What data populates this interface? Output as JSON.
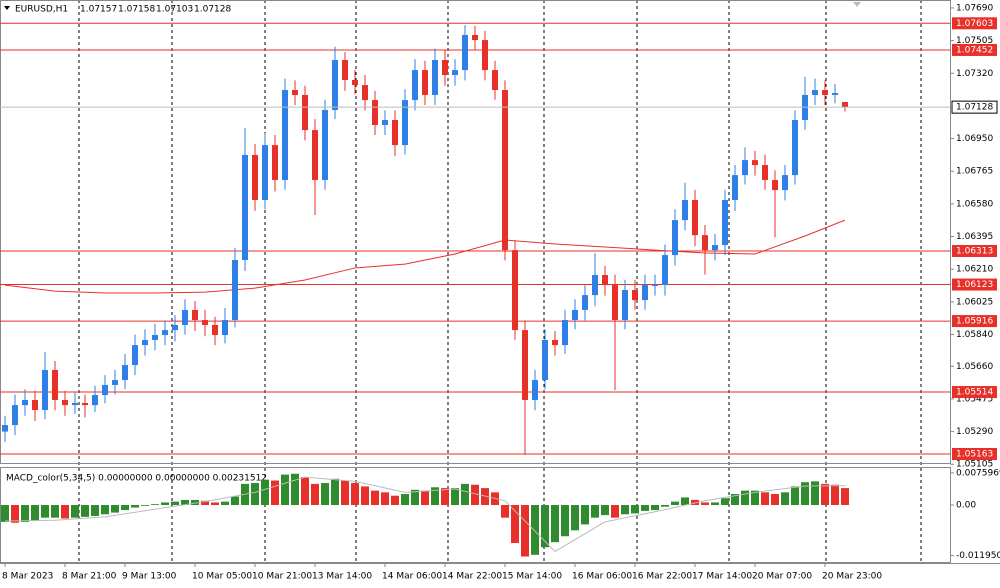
{
  "chart_data": {
    "type": "candlestick",
    "symbol": "EURUSD,H1",
    "candle_up_color": "#2f7fe6",
    "candle_down_color": "#e8302a",
    "ylim": [
      1.05112,
      1.07735
    ],
    "yticks": [
      {
        "value": 1.0769,
        "label": "1.07690"
      },
      1.07505,
      {
        "value": 1.0732,
        "label": "1.07320"
      },
      {
        "value": 1.0695,
        "label": "1.06950"
      },
      1.06765,
      {
        "value": 1.0658,
        "label": "1.06580"
      },
      1.06395,
      {
        "value": 1.0621,
        "label": "1.06210"
      },
      1.06025,
      {
        "value": 1.0584,
        "label": "1.05840"
      },
      {
        "value": 1.0566,
        "label": "1.05660"
      },
      1.05475,
      {
        "value": 1.0529,
        "label": "1.05290"
      },
      1.05105
    ],
    "levels": {
      "color": "#e8302a",
      "values": [
        1.07603,
        1.07452,
        1.06313,
        1.06123,
        1.05916,
        1.05514,
        1.05163
      ]
    },
    "categories": [
      "8 Mar 2023",
      null,
      null,
      null,
      null,
      null,
      "8 Mar 21:00",
      null,
      null,
      null,
      null,
      null,
      "9 Mar 13:00",
      null,
      null,
      null,
      null,
      null,
      null,
      "10 Mar 05:00",
      null,
      null,
      null,
      null,
      null,
      "10 Mar 21:00",
      null,
      null,
      null,
      null,
      null,
      "13 Mar 14:00",
      null,
      null,
      null,
      null,
      null,
      null,
      "14 Mar 06:00",
      null,
      null,
      null,
      null,
      null,
      "14 Mar 22:00",
      null,
      null,
      null,
      null,
      null,
      "15 Mar 14:00",
      null,
      null,
      null,
      null,
      null,
      null,
      "16 Mar 06:00",
      null,
      null,
      null,
      null,
      null,
      "16 Mar 22:00",
      null,
      null,
      null,
      null,
      null,
      "17 Mar 14:00",
      null,
      null,
      null,
      null,
      null,
      "20 Mar 07:00",
      null,
      null,
      null,
      null,
      null,
      null,
      "20 Mar 23:00",
      null,
      null
    ],
    "candles": [
      [
        1.0529,
        1.0538,
        1.0523,
        1.05327
      ],
      [
        1.05327,
        1.055,
        1.0527,
        1.0544
      ],
      [
        1.0544,
        1.0553,
        1.0538,
        1.05469
      ],
      [
        1.05469,
        1.0552,
        1.0535,
        1.05412
      ],
      [
        1.05412,
        1.05741,
        1.0536,
        1.05639
      ],
      [
        1.05639,
        1.0569,
        1.0541,
        1.05469
      ],
      [
        1.05469,
        1.0552,
        1.0538,
        1.0544
      ],
      [
        1.0544,
        1.0551,
        1.0539,
        1.05452
      ],
      [
        1.05452,
        1.055,
        1.0537,
        1.0544
      ],
      [
        1.0544,
        1.0555,
        1.054,
        1.05497
      ],
      [
        1.05497,
        1.0561,
        1.0545,
        1.05554
      ],
      [
        1.05554,
        1.0564,
        1.055,
        1.05582
      ],
      [
        1.05582,
        1.0573,
        1.0553,
        1.05667
      ],
      [
        1.05667,
        1.0584,
        1.0561,
        1.0578
      ],
      [
        1.0578,
        1.0587,
        1.0572,
        1.05809
      ],
      [
        1.05809,
        1.059,
        1.0575,
        1.05837
      ],
      [
        1.05837,
        1.0592,
        1.0578,
        1.05865
      ],
      [
        1.05865,
        1.0595,
        1.058,
        1.05894
      ],
      [
        1.05894,
        1.0604,
        1.0584,
        1.05979
      ],
      [
        1.05979,
        1.0603,
        1.0586,
        1.05922
      ],
      [
        1.05922,
        1.0598,
        1.0583,
        1.05894
      ],
      [
        1.05894,
        1.0594,
        1.0578,
        1.05837
      ],
      [
        1.05837,
        1.0599,
        1.0579,
        1.05922
      ],
      [
        1.05922,
        1.0633,
        1.0588,
        1.06262
      ],
      [
        1.06262,
        1.0701,
        1.062,
        1.06857
      ],
      [
        1.06857,
        1.0692,
        1.0654,
        1.06602
      ],
      [
        1.06602,
        1.0698,
        1.0655,
        1.06913
      ],
      [
        1.06913,
        1.0697,
        1.0665,
        1.06715
      ],
      [
        1.06715,
        1.0729,
        1.0666,
        1.07225
      ],
      [
        1.07225,
        1.0728,
        1.0714,
        1.07197
      ],
      [
        1.07197,
        1.0725,
        1.0694,
        1.06998
      ],
      [
        1.06998,
        1.0706,
        1.06517,
        1.06715
      ],
      [
        1.06715,
        1.0717,
        1.0666,
        1.07112
      ],
      [
        1.07112,
        1.0747,
        1.0706,
        1.07395
      ],
      [
        1.07395,
        1.0744,
        1.0722,
        1.07282
      ],
      [
        1.07282,
        1.0734,
        1.072,
        1.07253
      ],
      [
        1.07253,
        1.0731,
        1.0711,
        1.07168
      ],
      [
        1.07168,
        1.0722,
        1.0697,
        1.07027
      ],
      [
        1.07027,
        1.0711,
        1.0697,
        1.07055
      ],
      [
        1.07055,
        1.0711,
        1.0685,
        1.06913
      ],
      [
        1.06913,
        1.0723,
        1.0686,
        1.07168
      ],
      [
        1.07168,
        1.074,
        1.0711,
        1.07338
      ],
      [
        1.07338,
        1.0739,
        1.0714,
        1.07197
      ],
      [
        1.07197,
        1.0746,
        1.0714,
        1.07395
      ],
      [
        1.07395,
        1.0745,
        1.0725,
        1.0731
      ],
      [
        1.0731,
        1.074,
        1.0725,
        1.07338
      ],
      [
        1.07338,
        1.07593,
        1.0728,
        1.07537
      ],
      [
        1.07537,
        1.0759,
        1.0745,
        1.07508
      ],
      [
        1.07508,
        1.0756,
        1.0728,
        1.07338
      ],
      [
        1.07338,
        1.0739,
        1.0717,
        1.07225
      ],
      [
        1.07225,
        1.0728,
        1.0626,
        1.06318
      ],
      [
        1.06318,
        1.0637,
        1.0581,
        1.05865
      ],
      [
        1.05865,
        1.0592,
        1.05157,
        1.05469
      ],
      [
        1.05469,
        1.0564,
        1.0541,
        1.05582
      ],
      [
        1.05582,
        1.0587,
        1.0553,
        1.05809
      ],
      [
        1.05809,
        1.0586,
        1.0572,
        1.0578
      ],
      [
        1.0578,
        1.0598,
        1.0573,
        1.05922
      ],
      [
        1.05922,
        1.0604,
        1.0587,
        1.05979
      ],
      [
        1.05979,
        1.0612,
        1.0592,
        1.06063
      ],
      [
        1.06063,
        1.063,
        1.06,
        1.06177
      ],
      [
        1.06177,
        1.0623,
        1.0606,
        1.0612
      ],
      [
        1.0612,
        1.0618,
        1.05525,
        1.05922
      ],
      [
        1.05922,
        1.0615,
        1.0587,
        1.06092
      ],
      [
        1.06092,
        1.0615,
        1.0598,
        1.06035
      ],
      [
        1.06035,
        1.0618,
        1.0598,
        1.0612
      ],
      [
        1.0612,
        1.0618,
        1.0606,
        1.0612
      ],
      [
        1.0612,
        1.0635,
        1.0606,
        1.0629
      ],
      [
        1.0629,
        1.0655,
        1.0623,
        1.06488
      ],
      [
        1.06488,
        1.067,
        1.0643,
        1.06602
      ],
      [
        1.06602,
        1.0666,
        1.0634,
        1.06403
      ],
      [
        1.06403,
        1.0646,
        1.0618,
        1.06318
      ],
      [
        1.06318,
        1.0641,
        1.0626,
        1.06347
      ],
      [
        1.06347,
        1.0666,
        1.0629,
        1.06602
      ],
      [
        1.06602,
        1.068,
        1.0654,
        1.06743
      ],
      [
        1.06743,
        1.069,
        1.0669,
        1.06828
      ],
      [
        1.06828,
        1.0688,
        1.0674,
        1.068
      ],
      [
        1.068,
        1.0686,
        1.0666,
        1.06715
      ],
      [
        1.06715,
        1.0677,
        1.0639,
        1.06658
      ],
      [
        1.06658,
        1.068,
        1.066,
        1.06743
      ],
      [
        1.06743,
        1.0711,
        1.0669,
        1.07055
      ],
      [
        1.07055,
        1.073,
        1.07,
        1.07197
      ],
      [
        1.07197,
        1.0729,
        1.0714,
        1.07225
      ],
      [
        1.07225,
        1.0728,
        1.0714,
        1.07197
      ],
      [
        1.07197,
        1.0726,
        1.0715,
        1.07208
      ],
      [
        1.07157,
        1.07158,
        1.07103,
        1.07128
      ]
    ],
    "ma": {
      "color": "#e8302a",
      "x": [
        0,
        5,
        10,
        15,
        20,
        25,
        30,
        35,
        40,
        45,
        50,
        55,
        60,
        65,
        70,
        75,
        80,
        84
      ],
      "values": [
        1.0612,
        1.06086,
        1.06075,
        1.06075,
        1.0608,
        1.06103,
        1.06149,
        1.06217,
        1.06239,
        1.06296,
        1.06375,
        1.06353,
        1.06336,
        1.06318,
        1.06302,
        1.06296,
        1.06398,
        1.06488
      ]
    },
    "macd": {
      "title": "MACD_color(5,34,5) 0.00000000 0.00000000 0.00231512",
      "up_color": "#2e8b2e",
      "down_color": "#e8302a",
      "ylim": [
        -0.0135,
        0.009
      ],
      "yticks": [
        0.0075969,
        {
          "value": 0,
          "label": "0.00"
        },
        {
          "value": -0.01195,
          "label": "-0.011950"
        }
      ],
      "values": [
        -0.004,
        -0.0042,
        -0.004,
        -0.0038,
        -0.003,
        -0.003,
        -0.0032,
        -0.003,
        -0.0028,
        -0.0026,
        -0.0022,
        -0.0018,
        -0.0012,
        -0.0006,
        -0.0002,
        0.0002,
        0.0006,
        0.0008,
        0.0012,
        0.0012,
        0.001,
        0.0006,
        0.0008,
        0.002,
        0.005,
        0.0052,
        0.006,
        0.0058,
        0.0072,
        0.0074,
        0.0066,
        0.005,
        0.0052,
        0.0062,
        0.0058,
        0.0052,
        0.0044,
        0.0034,
        0.003,
        0.0022,
        0.0026,
        0.0036,
        0.0034,
        0.0042,
        0.004,
        0.004,
        0.005,
        0.0048,
        0.004,
        0.003,
        -0.003,
        -0.009,
        -0.0122,
        -0.0118,
        -0.01,
        -0.0088,
        -0.0074,
        -0.006,
        -0.0046,
        -0.003,
        -0.0024,
        -0.003,
        -0.0022,
        -0.002,
        -0.0014,
        -0.0012,
        -0.0004,
        0.0008,
        0.0018,
        0.0012,
        0.0006,
        0.0006,
        0.0016,
        0.0026,
        0.0034,
        0.0034,
        0.003,
        0.0026,
        0.003,
        0.0044,
        0.0054,
        0.0056,
        0.005,
        0.0048,
        0.004
      ],
      "signal": {
        "color": "#bbbbbb",
        "x": [
          0,
          5,
          10,
          15,
          20,
          25,
          30,
          35,
          40,
          45,
          50,
          55,
          60,
          65,
          70,
          75,
          80,
          84
        ],
        "values": [
          -0.0038,
          -0.0036,
          -0.0028,
          -0.001,
          0.0008,
          0.003,
          0.0066,
          0.0056,
          0.003,
          0.0038,
          0.001,
          -0.011,
          -0.004,
          -0.0016,
          0.001,
          0.003,
          0.0045,
          0.0046
        ]
      }
    }
  }
}
